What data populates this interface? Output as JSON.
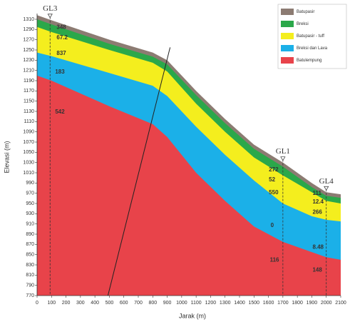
{
  "chart_data": {
    "type": "cross-section",
    "xlabel": "Jarak (m)",
    "ylabel": "Elevasi (m)",
    "xlim": [
      0,
      2100
    ],
    "ylim": [
      770,
      1310
    ],
    "xticks": [
      0,
      100,
      200,
      300,
      400,
      500,
      600,
      700,
      800,
      900,
      1000,
      1100,
      1200,
      1300,
      1400,
      1500,
      1600,
      1700,
      1800,
      1900,
      2000,
      2100
    ],
    "yticks": [
      770,
      790,
      810,
      830,
      850,
      870,
      890,
      910,
      930,
      950,
      970,
      990,
      1010,
      1030,
      1050,
      1070,
      1090,
      1110,
      1130,
      1150,
      1170,
      1190,
      1210,
      1230,
      1250,
      1270,
      1290,
      1310
    ],
    "x": [
      0,
      100,
      500,
      800,
      900,
      1100,
      1300,
      1500,
      1700,
      1900,
      2000,
      2100
    ],
    "series": [
      {
        "name": "Batupasir",
        "color": "#8c7b72",
        "values": [
          1318,
          1308,
          1270,
          1245,
          1230,
          1170,
          1115,
          1065,
          1030,
          990,
          972,
          968
        ]
      },
      {
        "name": "Breksi",
        "color": "#2ba84a",
        "values": [
          1310,
          1300,
          1262,
          1237,
          1222,
          1162,
          1107,
          1057,
          1022,
          982,
          965,
          961
        ]
      },
      {
        "name": "Batupasir - tuff",
        "color": "#f4ee1e",
        "values": [
          1295,
          1285,
          1250,
          1225,
          1208,
          1145,
          1090,
          1040,
          1005,
          972,
          955,
          950
        ]
      },
      {
        "name": "Breksi dan Lava",
        "color": "#1bb0e8",
        "values": [
          1245,
          1238,
          1205,
          1180,
          1160,
          1100,
          1045,
          995,
          950,
          925,
          918,
          915
        ]
      },
      {
        "name": "Batulempung",
        "color": "#e8434a",
        "values": [
          1200,
          1190,
          1140,
          1105,
          1080,
          1010,
          955,
          905,
          875,
          855,
          845,
          840
        ]
      }
    ],
    "fault": {
      "x": [
        490,
        920
      ],
      "y": [
        770,
        1255
      ]
    },
    "wells": [
      {
        "name": "GL3",
        "x": 90
      },
      {
        "name": "GL1",
        "x": 1700
      },
      {
        "name": "GL4",
        "x": 2000
      }
    ],
    "annotations": [
      {
        "text": "348",
        "x": 135,
        "y": 1294
      },
      {
        "text": "67.2",
        "x": 135,
        "y": 1274
      },
      {
        "text": "837",
        "x": 135,
        "y": 1243
      },
      {
        "text": "183",
        "x": 125,
        "y": 1207
      },
      {
        "text": "542",
        "x": 125,
        "y": 1129
      },
      {
        "text": "272",
        "x": 1603,
        "y": 1016
      },
      {
        "text": "52",
        "x": 1603,
        "y": 996
      },
      {
        "text": "550",
        "x": 1603,
        "y": 971
      },
      {
        "text": "0",
        "x": 1615,
        "y": 907
      },
      {
        "text": "116",
        "x": 1610,
        "y": 839
      },
      {
        "text": "111",
        "x": 1905,
        "y": 970
      },
      {
        "text": "12.4",
        "x": 1905,
        "y": 953
      },
      {
        "text": "266",
        "x": 1905,
        "y": 933
      },
      {
        "text": "8.48",
        "x": 1905,
        "y": 864
      },
      {
        "text": "148",
        "x": 1905,
        "y": 820
      }
    ]
  }
}
